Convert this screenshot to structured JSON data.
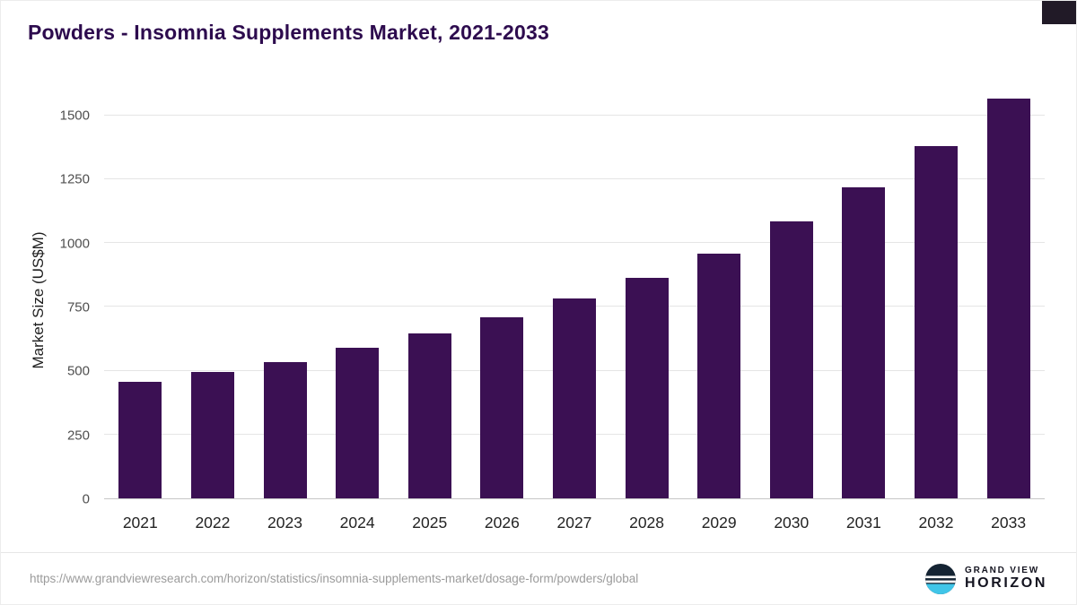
{
  "header": {
    "title": "Powders - Insomnia Supplements Market, 2021-2033"
  },
  "chart_data": {
    "type": "bar",
    "title": "Powders - Insomnia Supplements Market, 2021-2033",
    "categories": [
      "2021",
      "2022",
      "2023",
      "2024",
      "2025",
      "2026",
      "2027",
      "2028",
      "2029",
      "2030",
      "2031",
      "2032",
      "2033"
    ],
    "values": [
      455,
      495,
      535,
      590,
      645,
      710,
      785,
      865,
      960,
      1085,
      1220,
      1380,
      1565
    ],
    "xlabel": "",
    "ylabel": "Market Size (US$M)",
    "ylim": [
      0,
      1570
    ],
    "yticks": [
      0,
      250,
      500,
      750,
      1000,
      1250,
      1500
    ],
    "grid": true,
    "legend": false,
    "bar_color": "#3b1053"
  },
  "footer": {
    "source_url": "https://www.grandviewresearch.com/horizon/statistics/insomnia-supplements-market/dosage-form/powders/global",
    "brand": {
      "top": "GRAND VIEW",
      "bottom": "HORIZON"
    }
  },
  "colors": {
    "bar": "#3b1053",
    "title": "#2d0b4e",
    "corner_mark": "#211a27",
    "logo_dark": "#152433",
    "logo_teal": "#40c5e8"
  }
}
